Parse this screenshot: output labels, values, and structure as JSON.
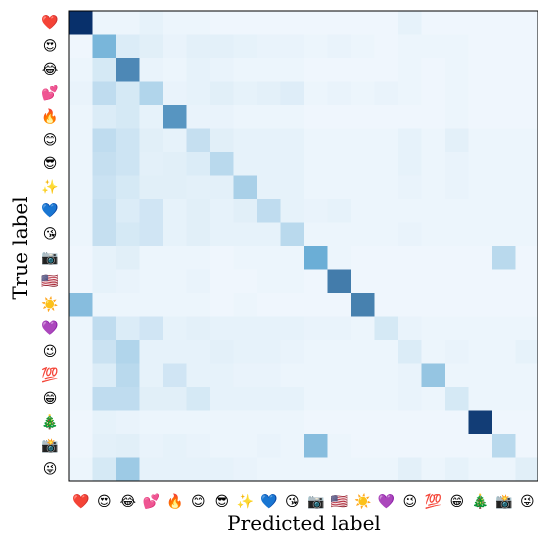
{
  "chart_data": {
    "type": "heatmap",
    "title": "",
    "xlabel": "Predicted label",
    "ylabel": "True label",
    "labels": [
      "❤️",
      "😍",
      "😂",
      "💕",
      "🔥",
      "😊",
      "😎",
      "✨",
      "💙",
      "😘",
      "📷",
      "🇺🇸",
      "☀️",
      "💜",
      "😉",
      "💯",
      "😁",
      "🎄",
      "📸",
      "😜"
    ],
    "colormap": "Blues",
    "colors": {
      "low": "#f7fbff",
      "mid": "#6baed6",
      "high": "#08306b"
    },
    "values": [
      [
        1.0,
        0.04,
        0.04,
        0.06,
        0.04,
        0.04,
        0.03,
        0.03,
        0.03,
        0.03,
        0.03,
        0.03,
        0.03,
        0.03,
        0.06,
        0.03,
        0.03,
        0.03,
        0.03,
        0.03
      ],
      [
        0.03,
        0.45,
        0.1,
        0.08,
        0.05,
        0.07,
        0.07,
        0.06,
        0.05,
        0.05,
        0.04,
        0.05,
        0.04,
        0.03,
        0.04,
        0.04,
        0.04,
        0.03,
        0.03,
        0.03
      ],
      [
        0.04,
        0.12,
        0.65,
        0.05,
        0.04,
        0.06,
        0.05,
        0.04,
        0.04,
        0.04,
        0.03,
        0.03,
        0.03,
        0.03,
        0.04,
        0.03,
        0.04,
        0.03,
        0.03,
        0.03
      ],
      [
        0.05,
        0.2,
        0.12,
        0.25,
        0.05,
        0.06,
        0.08,
        0.06,
        0.07,
        0.09,
        0.04,
        0.05,
        0.04,
        0.05,
        0.04,
        0.03,
        0.04,
        0.03,
        0.03,
        0.03
      ],
      [
        0.04,
        0.1,
        0.12,
        0.06,
        0.6,
        0.05,
        0.05,
        0.04,
        0.04,
        0.04,
        0.03,
        0.03,
        0.03,
        0.03,
        0.03,
        0.03,
        0.04,
        0.03,
        0.03,
        0.03
      ],
      [
        0.04,
        0.2,
        0.15,
        0.08,
        0.06,
        0.18,
        0.08,
        0.06,
        0.06,
        0.06,
        0.04,
        0.04,
        0.04,
        0.04,
        0.06,
        0.04,
        0.07,
        0.04,
        0.04,
        0.04
      ],
      [
        0.04,
        0.18,
        0.15,
        0.07,
        0.08,
        0.1,
        0.22,
        0.06,
        0.06,
        0.06,
        0.04,
        0.04,
        0.04,
        0.04,
        0.06,
        0.04,
        0.05,
        0.04,
        0.04,
        0.04
      ],
      [
        0.04,
        0.16,
        0.12,
        0.08,
        0.08,
        0.07,
        0.07,
        0.28,
        0.06,
        0.06,
        0.04,
        0.04,
        0.04,
        0.04,
        0.05,
        0.04,
        0.05,
        0.04,
        0.04,
        0.04
      ],
      [
        0.04,
        0.18,
        0.1,
        0.14,
        0.06,
        0.08,
        0.06,
        0.08,
        0.2,
        0.06,
        0.05,
        0.06,
        0.04,
        0.04,
        0.04,
        0.04,
        0.04,
        0.04,
        0.04,
        0.04
      ],
      [
        0.04,
        0.18,
        0.12,
        0.14,
        0.06,
        0.08,
        0.06,
        0.06,
        0.06,
        0.22,
        0.04,
        0.04,
        0.04,
        0.04,
        0.05,
        0.04,
        0.04,
        0.04,
        0.04,
        0.04
      ],
      [
        0.03,
        0.06,
        0.08,
        0.04,
        0.04,
        0.04,
        0.03,
        0.04,
        0.04,
        0.04,
        0.5,
        0.04,
        0.03,
        0.03,
        0.03,
        0.03,
        0.03,
        0.03,
        0.22,
        0.03
      ],
      [
        0.03,
        0.06,
        0.05,
        0.04,
        0.04,
        0.05,
        0.03,
        0.03,
        0.04,
        0.04,
        0.03,
        0.7,
        0.03,
        0.03,
        0.03,
        0.03,
        0.03,
        0.03,
        0.03,
        0.03
      ],
      [
        0.4,
        0.04,
        0.04,
        0.04,
        0.04,
        0.04,
        0.03,
        0.04,
        0.03,
        0.03,
        0.03,
        0.03,
        0.68,
        0.03,
        0.03,
        0.03,
        0.03,
        0.03,
        0.03,
        0.03
      ],
      [
        0.04,
        0.2,
        0.1,
        0.14,
        0.06,
        0.07,
        0.06,
        0.06,
        0.06,
        0.06,
        0.05,
        0.05,
        0.04,
        0.12,
        0.05,
        0.04,
        0.04,
        0.04,
        0.04,
        0.04
      ],
      [
        0.04,
        0.16,
        0.25,
        0.06,
        0.06,
        0.06,
        0.07,
        0.06,
        0.06,
        0.05,
        0.04,
        0.04,
        0.04,
        0.04,
        0.1,
        0.04,
        0.05,
        0.04,
        0.04,
        0.06
      ],
      [
        0.04,
        0.1,
        0.22,
        0.06,
        0.14,
        0.06,
        0.06,
        0.05,
        0.05,
        0.04,
        0.04,
        0.04,
        0.04,
        0.04,
        0.05,
        0.35,
        0.04,
        0.04,
        0.04,
        0.04
      ],
      [
        0.04,
        0.2,
        0.2,
        0.08,
        0.08,
        0.12,
        0.06,
        0.06,
        0.06,
        0.06,
        0.04,
        0.04,
        0.04,
        0.04,
        0.05,
        0.04,
        0.12,
        0.04,
        0.04,
        0.04
      ],
      [
        0.03,
        0.06,
        0.05,
        0.04,
        0.04,
        0.04,
        0.04,
        0.04,
        0.04,
        0.04,
        0.03,
        0.03,
        0.03,
        0.03,
        0.03,
        0.03,
        0.03,
        0.95,
        0.03,
        0.03
      ],
      [
        0.03,
        0.07,
        0.08,
        0.05,
        0.06,
        0.05,
        0.04,
        0.04,
        0.05,
        0.04,
        0.4,
        0.04,
        0.03,
        0.03,
        0.03,
        0.03,
        0.03,
        0.03,
        0.22,
        0.03
      ],
      [
        0.04,
        0.12,
        0.32,
        0.06,
        0.06,
        0.06,
        0.06,
        0.05,
        0.04,
        0.04,
        0.04,
        0.04,
        0.04,
        0.04,
        0.07,
        0.04,
        0.06,
        0.04,
        0.04,
        0.08
      ]
    ]
  }
}
